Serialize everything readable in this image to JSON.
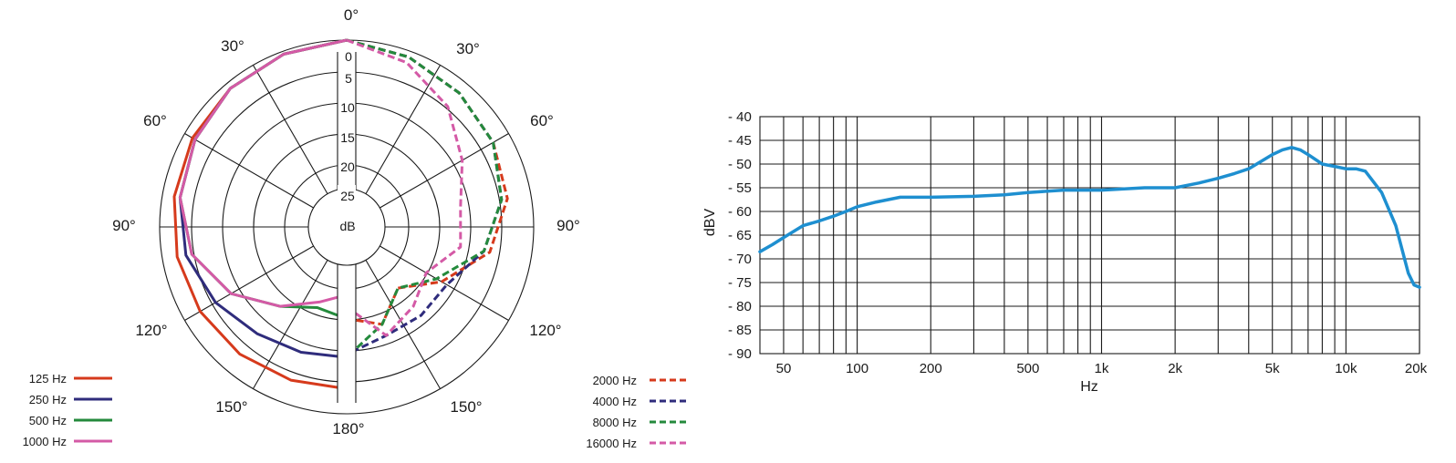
{
  "polar": {
    "angle_labels": [
      "0°",
      "30°",
      "30°",
      "60°",
      "60°",
      "90°",
      "90°",
      "120°",
      "120°",
      "150°",
      "150°",
      "180°"
    ],
    "db_labels": [
      "0",
      "5",
      "10",
      "15",
      "20",
      "25"
    ],
    "center_label": "dB",
    "legend_left": [
      {
        "label": "125 Hz",
        "color": "#d63a1c",
        "dash": false
      },
      {
        "label": "250 Hz",
        "color": "#2f2c7c",
        "dash": false
      },
      {
        "label": "500 Hz",
        "color": "#248a3c",
        "dash": false
      },
      {
        "label": "1000 Hz",
        "color": "#d45aa6",
        "dash": false
      }
    ],
    "legend_right": [
      {
        "label": "2000 Hz",
        "color": "#d63a1c",
        "dash": true
      },
      {
        "label": "4000 Hz",
        "color": "#2f2c7c",
        "dash": true
      },
      {
        "label": "8000 Hz",
        "color": "#248a3c",
        "dash": true
      },
      {
        "label": "16000 Hz",
        "color": "#d45aa6",
        "dash": true
      }
    ]
  },
  "response": {
    "y_label": "dBV",
    "x_label": "Hz",
    "y_ticks": [
      "- 40",
      "- 45",
      "- 50",
      "- 55",
      "- 60",
      "- 65",
      "- 70",
      "- 75",
      "- 80",
      "- 85",
      "- 90"
    ],
    "x_ticks": [
      "50",
      "100",
      "200",
      "500",
      "1k",
      "2k",
      "5k",
      "10k",
      "20k"
    ],
    "line_color": "#1e8fd0"
  },
  "chart_data": [
    {
      "type": "line",
      "subtype": "polar",
      "angle_unit": "degrees",
      "r_unit": "dB attenuation",
      "r_range": [
        0,
        25
      ],
      "left_half_series": [
        {
          "name": "125 Hz",
          "angles": [
            0,
            20,
            40,
            60,
            80,
            100,
            120,
            140,
            160,
            180
          ],
          "db": [
            0,
            0.5,
            1,
            1.5,
            2,
            2.5,
            3,
            3.5,
            4,
            4.2
          ]
        },
        {
          "name": "250 Hz",
          "angles": [
            0,
            20,
            40,
            60,
            80,
            100,
            120,
            140,
            160,
            180
          ],
          "db": [
            0,
            0.5,
            1,
            2,
            3,
            4,
            6,
            8,
            9,
            9.5
          ]
        },
        {
          "name": "500 Hz",
          "angles": [
            0,
            20,
            40,
            60,
            80,
            100,
            120,
            140,
            160,
            180
          ],
          "db": [
            0,
            0.5,
            1,
            2,
            3,
            5,
            9,
            14,
            17,
            16
          ]
        },
        {
          "name": "1000 Hz",
          "angles": [
            0,
            20,
            40,
            60,
            80,
            100,
            120,
            140,
            160,
            180
          ],
          "db": [
            0,
            0.5,
            1,
            2,
            3,
            5,
            9,
            14,
            18,
            20
          ]
        }
      ],
      "right_half_series": [
        {
          "name": "2000 Hz",
          "angles": [
            0,
            20,
            40,
            60,
            80,
            100,
            120,
            140,
            160,
            180
          ],
          "db": [
            0,
            1,
            2,
            3,
            4,
            7,
            13,
            18,
            14,
            16
          ]
        },
        {
          "name": "4000 Hz",
          "angles": [
            0,
            20,
            40,
            60,
            80,
            100,
            120,
            140,
            160,
            180
          ],
          "db": [
            0,
            1,
            2,
            3,
            5,
            8,
            12,
            12,
            12,
            10
          ]
        },
        {
          "name": "8000 Hz",
          "angles": [
            0,
            20,
            40,
            60,
            80,
            100,
            120,
            140,
            160,
            180
          ],
          "db": [
            0,
            1,
            2,
            3,
            5,
            8,
            14,
            18,
            14,
            9.5
          ]
        },
        {
          "name": "16000 Hz",
          "angles": [
            0,
            20,
            40,
            60,
            80,
            100,
            120,
            140,
            160,
            180
          ],
          "db": [
            0,
            2,
            5,
            9,
            12,
            12,
            16,
            14,
            12,
            18
          ]
        }
      ]
    },
    {
      "type": "line",
      "xlabel": "Hz",
      "ylabel": "dBV",
      "xscale": "log",
      "xlim": [
        40,
        20000
      ],
      "ylim": [
        -90,
        -40
      ],
      "grid": true,
      "x": [
        40,
        45,
        50,
        60,
        70,
        80,
        90,
        100,
        120,
        150,
        200,
        300,
        400,
        500,
        700,
        1000,
        1500,
        2000,
        2500,
        3000,
        3500,
        4000,
        5000,
        5500,
        6000,
        6500,
        7000,
        8000,
        9000,
        10000,
        11000,
        12000,
        14000,
        16000,
        18000,
        19000,
        20000
      ],
      "y": [
        -68.5,
        -67,
        -65.5,
        -63,
        -62,
        -61,
        -60,
        -59,
        -58,
        -57,
        -57,
        -56.8,
        -56.5,
        -56,
        -55.5,
        -55.5,
        -55,
        -55,
        -54,
        -53,
        -52,
        -51,
        -48,
        -47,
        -46.5,
        -47,
        -48,
        -50,
        -50.5,
        -51,
        -51,
        -51.5,
        -56,
        -63,
        -73,
        -75.5,
        -76
      ]
    }
  ]
}
